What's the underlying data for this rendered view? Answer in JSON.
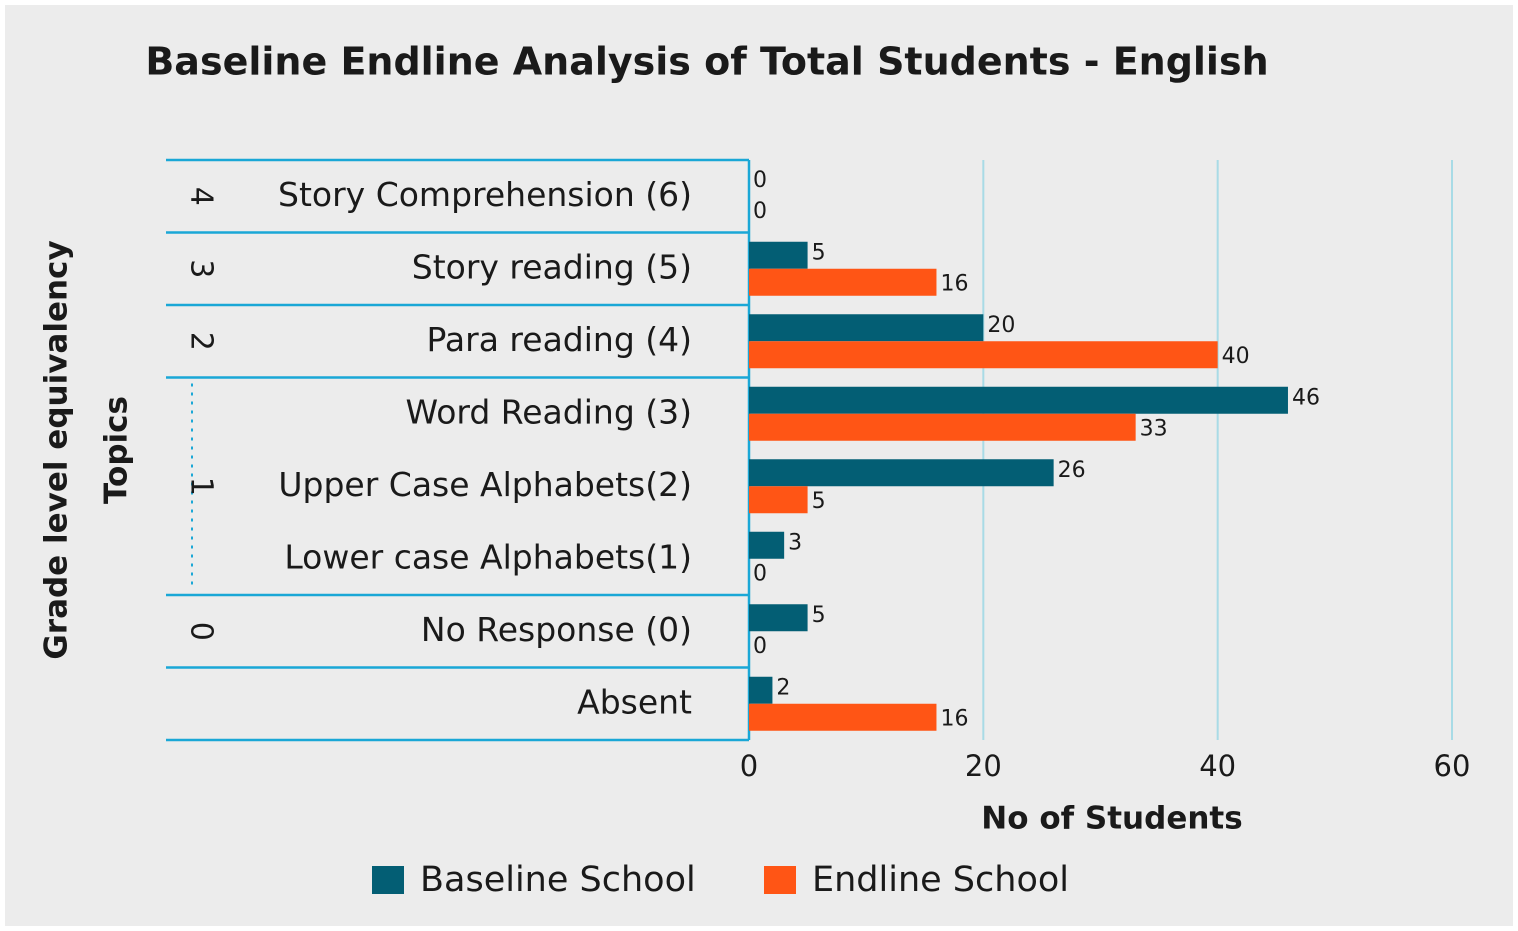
{
  "chart_data": {
    "type": "bar",
    "orientation": "horizontal",
    "title": "Baseline Endline Analysis of Total Students - English",
    "xlabel": "No of Students",
    "ylabels": [
      "Grade level equivalency",
      "Topics"
    ],
    "categories": [
      "Story Comprehension (6)",
      "Story reading (5)",
      "Para reading (4)",
      "Word Reading (3)",
      "Upper Case Alphabets(2)",
      "Lower case Alphabets(1)",
      "No Response (0)",
      "Absent"
    ],
    "grade_levels": [
      "4",
      "3",
      "2",
      "1",
      "1",
      "1",
      "0",
      null
    ],
    "series": [
      {
        "name": "Baseline School",
        "color": "#035e74",
        "values": [
          0,
          5,
          20,
          46,
          26,
          3,
          5,
          2
        ]
      },
      {
        "name": "Endline School",
        "color": "#ff5515",
        "values": [
          0,
          16,
          40,
          33,
          5,
          0,
          0,
          16
        ]
      }
    ],
    "xlim": [
      0,
      60
    ],
    "xticks": [
      0,
      20,
      40,
      60
    ],
    "grid": true,
    "legend": "bottom"
  }
}
